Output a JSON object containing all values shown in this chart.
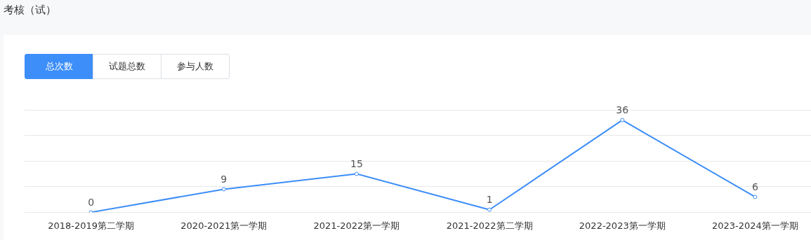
{
  "chart_data": {
    "type": "line",
    "title": "考核（试）",
    "annotations": [
      "总次数",
      "试题总数",
      "参与人数"
    ],
    "categories": [
      "2018-2019第二学期",
      "2020-2021第一学期",
      "2021-2022第一学期",
      "2021-2022第二学期",
      "2022-2023第一学期",
      "2023-2024第一学期"
    ],
    "series": [
      {
        "color": "#3d8ef8",
        "values": [
          0,
          9,
          15,
          1,
          36,
          6
        ]
      }
    ],
    "ylim": [
      0,
      40
    ],
    "yticks": [
      {
        "value": 0,
        "label": null
      },
      {
        "value": 10,
        "label": null
      },
      {
        "value": 20,
        "label": null
      },
      {
        "value": 30,
        "label": null
      },
      {
        "value": 40,
        "label": null
      }
    ],
    "tick_labels": "x",
    "grid": "y",
    "legend": false,
    "marker": "circle",
    "line_style": "solid",
    "data_labels": true
  }
}
